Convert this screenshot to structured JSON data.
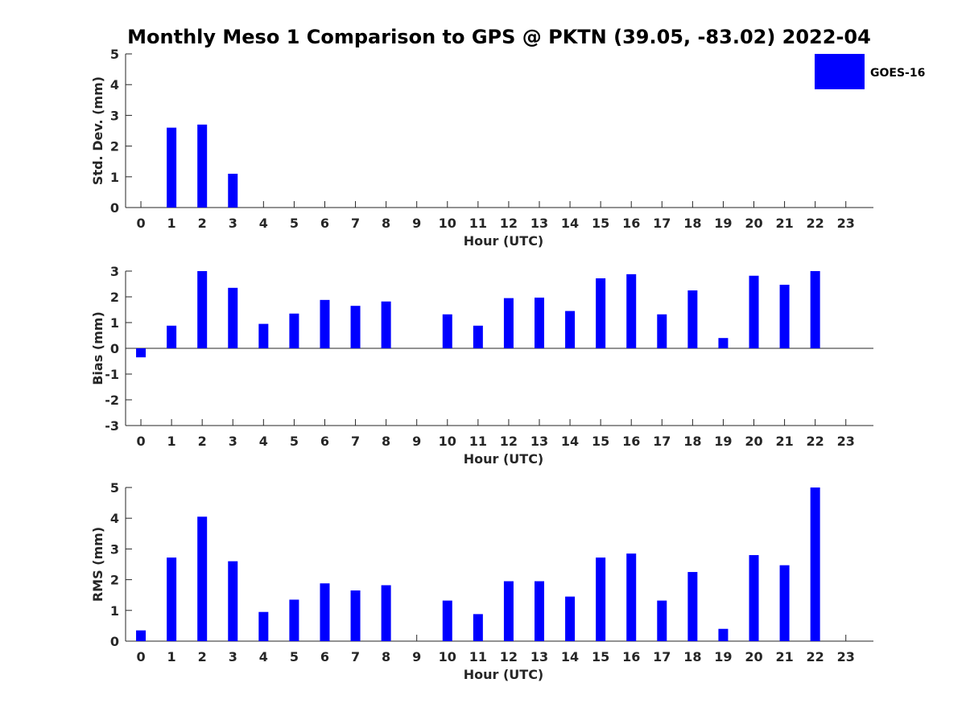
{
  "title": "Monthly Meso 1 Comparison to GPS @ PKTN (39.05, -83.02) 2022-04",
  "bar_color": "#0000FF",
  "legend": {
    "label": "GOES-16",
    "placement": "top-right"
  },
  "chart_data": [
    {
      "type": "bar",
      "id": "std",
      "xlabel": "Hour (UTC)",
      "ylabel": "Std. Dev. (mm)",
      "ylim": [
        0,
        5
      ],
      "yticks": [
        0,
        1,
        2,
        3,
        4,
        5
      ],
      "categories": [
        "0",
        "1",
        "2",
        "3",
        "4",
        "5",
        "6",
        "7",
        "8",
        "9",
        "10",
        "11",
        "12",
        "13",
        "14",
        "15",
        "16",
        "17",
        "18",
        "19",
        "20",
        "21",
        "22",
        "23"
      ],
      "values": [
        null,
        2.6,
        2.7,
        1.1,
        null,
        null,
        null,
        null,
        null,
        null,
        null,
        null,
        null,
        null,
        null,
        null,
        null,
        null,
        null,
        null,
        null,
        null,
        null,
        null
      ]
    },
    {
      "type": "bar",
      "id": "bias",
      "xlabel": "Hour (UTC)",
      "ylabel": "Bias (mm)",
      "ylim": [
        -3,
        3
      ],
      "yticks": [
        -3,
        -2,
        -1,
        0,
        1,
        2,
        3
      ],
      "categories": [
        "0",
        "1",
        "2",
        "3",
        "4",
        "5",
        "6",
        "7",
        "8",
        "9",
        "10",
        "11",
        "12",
        "13",
        "14",
        "15",
        "16",
        "17",
        "18",
        "19",
        "20",
        "21",
        "22",
        "23"
      ],
      "values": [
        -0.35,
        0.88,
        3.0,
        2.35,
        0.95,
        1.35,
        1.88,
        1.65,
        1.82,
        null,
        1.32,
        0.88,
        1.95,
        1.97,
        1.45,
        2.72,
        2.88,
        1.32,
        2.25,
        0.4,
        2.82,
        2.47,
        3.0,
        null
      ]
    },
    {
      "type": "bar",
      "id": "rms",
      "xlabel": "Hour (UTC)",
      "ylabel": "RMS (mm)",
      "ylim": [
        0,
        5
      ],
      "yticks": [
        0,
        1,
        2,
        3,
        4,
        5
      ],
      "categories": [
        "0",
        "1",
        "2",
        "3",
        "4",
        "5",
        "6",
        "7",
        "8",
        "9",
        "10",
        "11",
        "12",
        "13",
        "14",
        "15",
        "16",
        "17",
        "18",
        "19",
        "20",
        "21",
        "22",
        "23"
      ],
      "values": [
        0.35,
        2.72,
        4.05,
        2.6,
        0.95,
        1.35,
        1.88,
        1.65,
        1.82,
        null,
        1.32,
        0.88,
        1.95,
        1.95,
        1.45,
        2.72,
        2.85,
        1.32,
        2.25,
        0.4,
        2.8,
        2.47,
        5.0,
        null
      ]
    }
  ]
}
